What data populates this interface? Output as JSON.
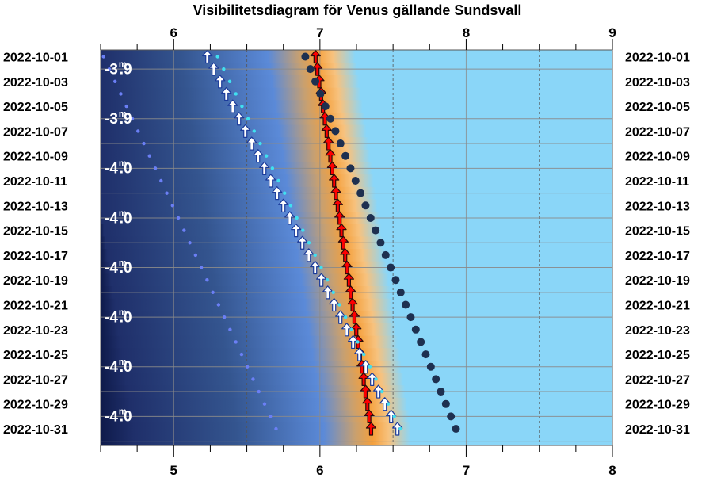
{
  "chart_data": {
    "type": "scatter",
    "title": "Visibilitetsdiagram för Venus gällande Sundsvall",
    "top_axis": {
      "min": 5.5,
      "max": 9,
      "ticks": [
        6,
        7,
        8,
        9
      ]
    },
    "bottom_axis": {
      "min": 4.5,
      "max": 8,
      "ticks": [
        5,
        6,
        7,
        8
      ]
    },
    "dates": [
      "2022-10-01",
      "2022-10-03",
      "2022-10-05",
      "2022-10-07",
      "2022-10-09",
      "2022-10-11",
      "2022-10-13",
      "2022-10-15",
      "2022-10-17",
      "2022-10-19",
      "2022-10-21",
      "2022-10-23",
      "2022-10-25",
      "2022-10-27",
      "2022-10-29",
      "2022-10-31"
    ],
    "magnitudes": [
      {
        "date": "2022-10-01",
        "text": "-3.9"
      },
      {
        "date": "2022-10-05",
        "text": "-3.9"
      },
      {
        "date": "2022-10-09",
        "text": "-4.0"
      },
      {
        "date": "2022-10-13",
        "text": "-4.0"
      },
      {
        "date": "2022-10-17",
        "text": "-4.0"
      },
      {
        "date": "2022-10-21",
        "text": "-4.0"
      },
      {
        "date": "2022-10-25",
        "text": "-4.0"
      },
      {
        "date": "2022-10-29",
        "text": "-4.0"
      }
    ],
    "magnitude_unit": "m",
    "series": [
      {
        "marker": "red-arrow",
        "color": "#ff0000",
        "start": 6.97,
        "end": 7.35
      },
      {
        "marker": "white-arrow",
        "color": "#ffffff",
        "start": 6.23,
        "end": 7.53
      },
      {
        "marker": "dark-dot",
        "color": "#1e3050",
        "start": 6.9,
        "end": 7.93
      },
      {
        "marker": "blue-dot",
        "color": "#6b7ff5",
        "start": 5.52,
        "end": 6.7
      },
      {
        "marker": "cyan-dot",
        "color": "#40e0f0",
        "start": 6.3,
        "end": 7.55
      }
    ],
    "colors": {
      "night": "#0e1a4a",
      "twilight": "#5b8ad8",
      "dawn": "#f5a03c",
      "day": "#8ad6f8"
    },
    "grid": true
  }
}
